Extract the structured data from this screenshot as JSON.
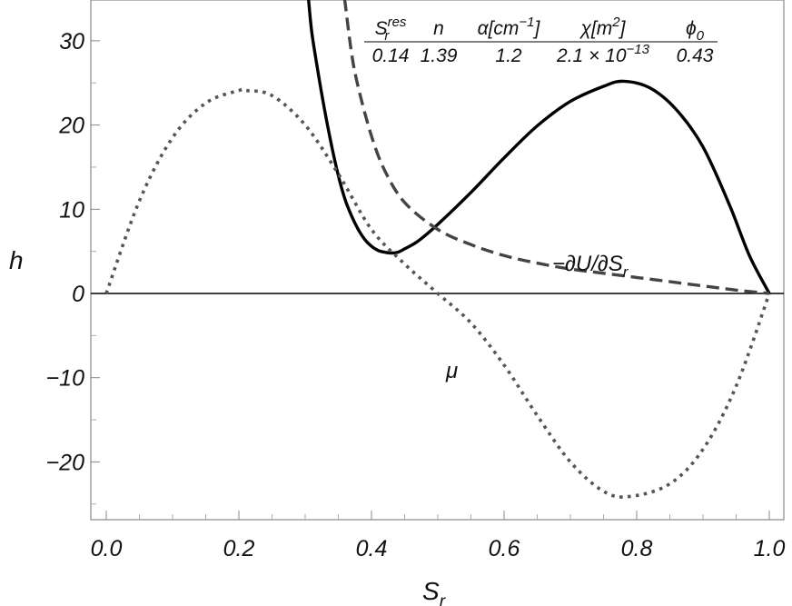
{
  "chart_data": {
    "type": "line",
    "xlabel": "S",
    "xlabel_sub": "r",
    "ylabel": "h",
    "xlim": [
      0.0,
      1.0
    ],
    "ylim": [
      -27,
      35
    ],
    "x_ticks": [
      "0.0",
      "0.2",
      "0.4",
      "0.6",
      "0.8",
      "1.0"
    ],
    "y_ticks": [
      "30",
      "20",
      "10",
      "0",
      "−10",
      "−20"
    ],
    "grid": false,
    "legend": "none",
    "params_table": {
      "headers": [
        {
          "main": "S",
          "sub": "r",
          "sup": "res"
        },
        {
          "main": "n"
        },
        {
          "main": "α[cm",
          "sup": "−1",
          "tail": "]"
        },
        {
          "main": "χ[m",
          "sup": "2",
          "tail": "]"
        },
        {
          "main": "ϕ",
          "sub": "0"
        }
      ],
      "values": [
        {
          "main": "0.14"
        },
        {
          "main": "1.39"
        },
        {
          "main": "1.2"
        },
        {
          "main": "2.1 × 10",
          "sup": "−13"
        },
        {
          "main": "0.43"
        }
      ]
    },
    "annotations": {
      "dashed_label": "−∂U/∂S",
      "dashed_label_sub": "r",
      "dotted_label": "μ"
    },
    "series": [
      {
        "style": "solid",
        "color": "#000000",
        "x": [
          0.305,
          0.31,
          0.32,
          0.33,
          0.34,
          0.35,
          0.36,
          0.37,
          0.38,
          0.39,
          0.4,
          0.41,
          0.42,
          0.43,
          0.44,
          0.45,
          0.47,
          0.5,
          0.55,
          0.6,
          0.65,
          0.7,
          0.75,
          0.78,
          0.82,
          0.86,
          0.9,
          0.94,
          0.97,
          1.0
        ],
        "y": [
          35,
          31,
          26,
          21.5,
          17.5,
          14,
          11.2,
          9.2,
          7.6,
          6.4,
          5.6,
          5.1,
          4.9,
          4.8,
          4.9,
          5.3,
          6.2,
          8.2,
          12,
          16.1,
          19.9,
          22.8,
          24.6,
          25.2,
          24.4,
          21.8,
          17.4,
          10.5,
          4.5,
          0
        ]
      },
      {
        "style": "dashed",
        "color": "#444444",
        "x": [
          0.3595,
          0.37,
          0.38,
          0.4,
          0.42,
          0.45,
          0.5,
          0.55,
          0.6,
          0.65,
          0.7,
          0.75,
          0.8,
          0.85,
          0.9,
          0.95,
          1.0
        ],
        "y": [
          35,
          28.5,
          24.5,
          18.7,
          14.6,
          10.8,
          7.6,
          5.8,
          4.5,
          3.6,
          2.9,
          2.4,
          1.9,
          1.4,
          0.9,
          0.4,
          0
        ]
      },
      {
        "style": "dotted",
        "color": "#555555",
        "x": [
          0.0,
          0.05,
          0.1,
          0.15,
          0.2,
          0.21,
          0.25,
          0.3,
          0.35,
          0.4,
          0.45,
          0.5,
          0.55,
          0.6,
          0.65,
          0.7,
          0.75,
          0.79,
          0.85,
          0.9,
          0.95,
          1.0
        ],
        "y": [
          0.0,
          11.0,
          18.5,
          22.6,
          24.1,
          24.1,
          23.5,
          20.0,
          14.2,
          7.6,
          3.5,
          0.0,
          -3.5,
          -8.5,
          -14.5,
          -20.0,
          -23.5,
          -24.1,
          -22.6,
          -18.5,
          -11.0,
          0.0
        ]
      }
    ]
  }
}
